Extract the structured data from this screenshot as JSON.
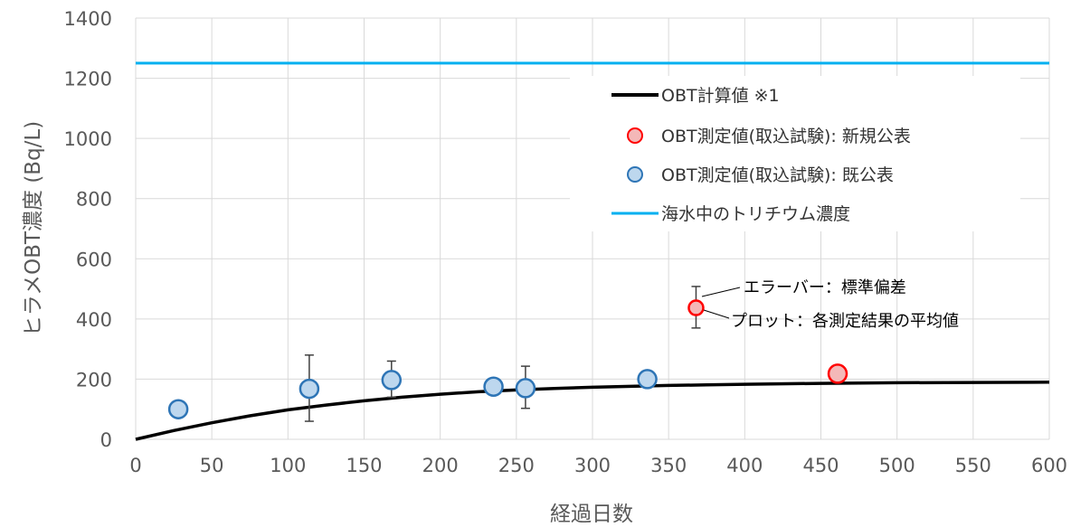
{
  "chart_data": {
    "type": "scatter",
    "xlabel": "経過日数",
    "ylabel": "ヒラメOBT濃度 (Bq/L)",
    "xlim": [
      0,
      600
    ],
    "ylim": [
      0,
      1400
    ],
    "x_ticks": [
      0,
      50,
      100,
      150,
      200,
      250,
      300,
      350,
      400,
      450,
      500,
      550,
      600
    ],
    "y_ticks": [
      0,
      200,
      400,
      600,
      800,
      1000,
      1200,
      1400
    ],
    "grid": true,
    "legend_position": "top-right",
    "series": [
      {
        "name": "OBT計算値 ※1",
        "kind": "line",
        "color": "#000000",
        "x": [
          0,
          25,
          50,
          75,
          100,
          125,
          150,
          175,
          200,
          225,
          250,
          275,
          300,
          325,
          350,
          375,
          400,
          450,
          500,
          550,
          600
        ],
        "y": [
          0,
          29,
          55,
          78,
          98,
          114,
          128,
          140,
          150,
          158,
          164,
          169,
          173,
          176,
          179,
          181,
          183,
          186,
          188,
          189,
          190
        ]
      },
      {
        "name": "OBT測定値(取込試験): 新規公表",
        "kind": "scatter",
        "fill": "#f4b8b8",
        "stroke": "#ff0000",
        "points": [
          {
            "x": 368,
            "y": 437,
            "err_low": 370,
            "err_high": 508
          },
          {
            "x": 461,
            "y": 218
          }
        ]
      },
      {
        "name": "OBT測定値(取込試験): 既公表",
        "kind": "scatter",
        "fill": "#bdd7ee",
        "stroke": "#2e75b6",
        "points": [
          {
            "x": 28,
            "y": 100
          },
          {
            "x": 114,
            "y": 168,
            "err_low": 60,
            "err_high": 280
          },
          {
            "x": 168,
            "y": 197,
            "err_low": 140,
            "err_high": 260
          },
          {
            "x": 235,
            "y": 175
          },
          {
            "x": 256,
            "y": 170,
            "err_low": 103,
            "err_high": 243
          },
          {
            "x": 336,
            "y": 200
          }
        ]
      },
      {
        "name": "海水中のトリチウム濃度",
        "kind": "hline",
        "color": "#00b0f0",
        "y": 1250
      }
    ],
    "annotations": {
      "errorbar": "エラーバー：標準偏差",
      "plot": "プロット：各測定結果の平均値"
    }
  }
}
